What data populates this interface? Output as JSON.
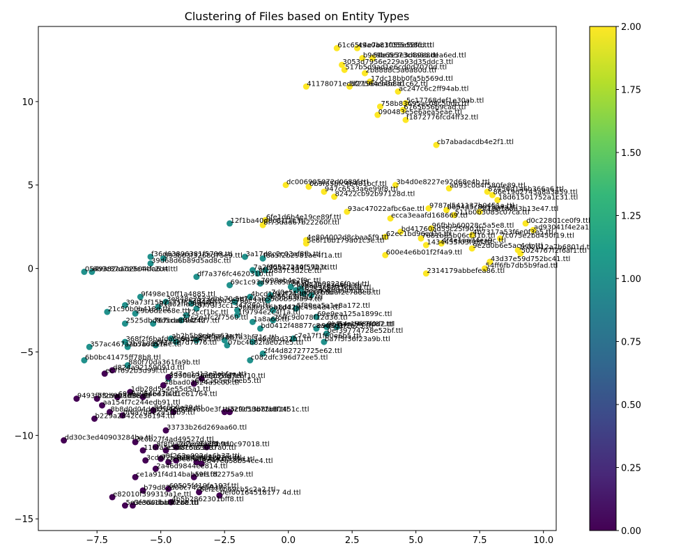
{
  "chart_data": {
    "type": "scatter",
    "title": "Clustering of Files based on Entity Types",
    "xlabel": "",
    "ylabel": "",
    "xlim": [
      -9.8,
      10.5
    ],
    "ylim": [
      -15.7,
      14.5
    ],
    "xticks": [
      -7.5,
      -5.0,
      -2.5,
      0.0,
      2.5,
      5.0,
      7.5,
      10.0
    ],
    "xtick_labels": [
      "−7.5",
      "−5.0",
      "−2.5",
      "0.0",
      "2.5",
      "5.0",
      "7.5",
      "10.0"
    ],
    "yticks": [
      -15,
      -10,
      -5,
      0,
      5,
      10
    ],
    "ytick_labels": [
      "−15",
      "−10",
      "−5",
      "0",
      "5",
      "10"
    ],
    "grid": false,
    "colormap": "viridis",
    "colors": {
      "cluster_0": "#440154",
      "cluster_1": "#21918c",
      "cluster_2": "#fde725"
    },
    "colorbar": {
      "range": [
        0,
        2
      ],
      "ticks": [
        0.0,
        0.25,
        0.5,
        0.75,
        1.0,
        1.25,
        1.5,
        1.75,
        2.0
      ],
      "tick_labels": [
        "0.00",
        "0.25",
        "0.50",
        "0.75",
        "1.00",
        "1.25",
        "1.50",
        "1.75",
        "2.00"
      ]
    },
    "points": [
      {
        "x": 1.9,
        "y": 13.2,
        "c": 2,
        "label": "61c65c4e7bc3f055d58fd.ttl"
      },
      {
        "x": 2.7,
        "y": 13.2,
        "c": 2,
        "label": "49a0a81055e58fd.ttl"
      },
      {
        "x": 2.9,
        "y": 12.6,
        "c": 2,
        "label": "b9e9b65573c4a3b.ttl"
      },
      {
        "x": 3.3,
        "y": 12.6,
        "c": 2,
        "label": "50e3e3e3d89e8dea6ed.ttl"
      },
      {
        "x": 2.1,
        "y": 12.2,
        "c": 2,
        "label": "3053d7956e229a93d35ddc3.ttl"
      },
      {
        "x": 2.2,
        "y": 11.9,
        "c": 2,
        "label": "517b5d9ad1e6cd0d7070d.ttl"
      },
      {
        "x": 3.0,
        "y": 11.7,
        "c": 2,
        "label": "2b8888c5a6a80d.ttl"
      },
      {
        "x": 0.7,
        "y": 10.9,
        "c": 2,
        "label": "41178071edd27564cb3d.ttl"
      },
      {
        "x": 2.4,
        "y": 10.9,
        "c": 2,
        "label": "5f2196a94b8a1c62.ttl"
      },
      {
        "x": 3.2,
        "y": 11.2,
        "c": 2,
        "label": "17dc18bb0fa5b569d.ttl"
      },
      {
        "x": 4.3,
        "y": 10.6,
        "c": 2,
        "label": "ac247c6c2ff94ab.ttl"
      },
      {
        "x": 4.6,
        "y": 9.9,
        "c": 2,
        "label": "5c17768def1e30ab.ttl"
      },
      {
        "x": 3.6,
        "y": 9.7,
        "c": 2,
        "label": "758b83695ac08c50db.ttl"
      },
      {
        "x": 4.5,
        "y": 9.5,
        "c": 2,
        "label": "6765b56b9cad.ttl"
      },
      {
        "x": 3.5,
        "y": 9.2,
        "c": 2,
        "label": "090483e5e6aea5eae.ttl"
      },
      {
        "x": 4.6,
        "y": 8.9,
        "c": 2,
        "label": "f1872776fcd4ff32.ttl"
      },
      {
        "x": 5.8,
        "y": 7.4,
        "c": 2,
        "label": "cb7abadacdb4e2f1.ttl"
      },
      {
        "x": -0.1,
        "y": 5.0,
        "c": 2,
        "label": "dc006905072d0688f.ttl"
      },
      {
        "x": 0.8,
        "y": 4.9,
        "c": 2,
        "label": "0b9f65bfc4b481bcf.ttl"
      },
      {
        "x": 1.4,
        "y": 4.6,
        "c": 2,
        "label": "947c6533a6e99f8.ttl"
      },
      {
        "x": 1.8,
        "y": 4.3,
        "c": 2,
        "label": "82422cb92b97128d.ttl"
      },
      {
        "x": 4.2,
        "y": 5.0,
        "c": 2,
        "label": "3b4d0e8227e92d68e4b.ttl"
      },
      {
        "x": 6.3,
        "y": 4.8,
        "c": 2,
        "label": "ab93c0d4f580fe89.ttl"
      },
      {
        "x": 7.8,
        "y": 4.6,
        "c": 2,
        "label": "87456d1a6b366a6.ttl"
      },
      {
        "x": 8.0,
        "y": 4.4,
        "c": 2,
        "label": "86e19d2743a8a3a59.ttl"
      },
      {
        "x": 8.2,
        "y": 4.1,
        "c": 2,
        "label": "18d61501752a1c31.ttl"
      },
      {
        "x": 5.5,
        "y": 3.6,
        "c": 2,
        "label": "9787d541137b0451a.ttl"
      },
      {
        "x": 6.2,
        "y": 3.5,
        "c": 2,
        "label": "b6b4d5c8e15baa.ttl"
      },
      {
        "x": 7.5,
        "y": 3.4,
        "c": 2,
        "label": "5f19d1a0a3b13e47.ttl"
      },
      {
        "x": 2.3,
        "y": 3.4,
        "c": 2,
        "label": "93ac47022afbc6ae.ttl"
      },
      {
        "x": 6.5,
        "y": 3.2,
        "c": 2,
        "label": "511b0b3085c07ca.ttl"
      },
      {
        "x": 4.0,
        "y": 3.0,
        "c": 2,
        "label": "ecca3eaafd168669.ttl"
      },
      {
        "x": 9.3,
        "y": 2.7,
        "c": 2,
        "label": "d0c22801ce0f9.ttl"
      },
      {
        "x": 5.6,
        "y": 2.4,
        "c": 2,
        "label": "96fbbb60028c5a5e8.ttl"
      },
      {
        "x": 9.6,
        "y": 2.3,
        "c": 2,
        "label": "ad93041f4e2a16.ttl"
      },
      {
        "x": 4.4,
        "y": 2.2,
        "c": 2,
        "label": "bd41760ad55c25f90.ttl"
      },
      {
        "x": 7.2,
        "y": 2.0,
        "c": 2,
        "label": "4b7317a53f6e0f3e5.ttl"
      },
      {
        "x": 3.8,
        "y": 1.9,
        "c": 2,
        "label": "62ec1bd96cd1c.ttl"
      },
      {
        "x": 5.2,
        "y": 1.8,
        "c": 2,
        "label": "7681b65b06cf31b.ttl"
      },
      {
        "x": 8.3,
        "y": 1.8,
        "c": 2,
        "label": "7c075e2bd450f19.ttl"
      },
      {
        "x": -0.9,
        "y": 2.9,
        "c": 2,
        "label": "6fe1d6b4e19ce89f.ttl"
      },
      {
        "x": -1.0,
        "y": 2.6,
        "c": 2,
        "label": "8f75dad67b22260f.ttl"
      },
      {
        "x": 0.7,
        "y": 1.7,
        "c": 2,
        "label": "4e804002d8cbaa5f9.ttl"
      },
      {
        "x": 0.7,
        "y": 1.5,
        "c": 2,
        "label": "5e6f16b179a01c3e.ttl"
      },
      {
        "x": 5.4,
        "y": 1.4,
        "c": 2,
        "label": "1434455f03f98f.ttl"
      },
      {
        "x": 6.0,
        "y": 1.5,
        "c": 2,
        "label": "4f4e1aa34ea9c.ttl"
      },
      {
        "x": 7.2,
        "y": 1.2,
        "c": 2,
        "label": "9e2d0b6e5ac4cb.ttl"
      },
      {
        "x": 9.0,
        "y": 1.1,
        "c": 2,
        "label": "1c02d12a7b6801d.ttl"
      },
      {
        "x": 9.1,
        "y": 0.9,
        "c": 2,
        "label": "5024767f2f6af1.ttl"
      },
      {
        "x": 3.8,
        "y": 0.8,
        "c": 2,
        "label": "600e4e6b01f2f4a9.ttl"
      },
      {
        "x": 7.9,
        "y": 0.4,
        "c": 2,
        "label": "43d37e59d752bc41.ttl"
      },
      {
        "x": 7.7,
        "y": 0.0,
        "c": 2,
        "label": "54ff6fb7db5b9fad.ttl"
      },
      {
        "x": 5.4,
        "y": -0.3,
        "c": 2,
        "label": "2314179abbefea86.ttl"
      },
      {
        "x": -2.3,
        "y": 2.7,
        "c": 1,
        "label": "12f1ba40d8c81f1c.ttl"
      },
      {
        "x": -5.4,
        "y": 0.7,
        "c": 1,
        "label": "f36d63896381f5798.ttl"
      },
      {
        "x": -4.9,
        "y": 0.6,
        "c": 1,
        "label": "593b63f3268d75e9.ttl"
      },
      {
        "x": -1.7,
        "y": 0.7,
        "c": 1,
        "label": "3a17d8c2c03af8fb.ttl"
      },
      {
        "x": -1.0,
        "y": 0.6,
        "c": 1,
        "label": "f8a5f2b2981ae4f1a.ttl"
      },
      {
        "x": -5.4,
        "y": 0.3,
        "c": 1,
        "label": "39d68d6b89d5ad8c.ttl"
      },
      {
        "x": -8.0,
        "y": -0.2,
        "c": 1,
        "label": "0549382aad2504dc2b4.ttl"
      },
      {
        "x": -7.7,
        "y": -0.2,
        "c": 1,
        "label": "6b9c87d7a9e44fa6.ttl"
      },
      {
        "x": -1.4,
        "y": -0.1,
        "c": 1,
        "label": "7a2f95bc2234f592.ttl"
      },
      {
        "x": -0.9,
        "y": -0.1,
        "c": 1,
        "label": "ef0527a40f57b3c.ttl"
      },
      {
        "x": -3.6,
        "y": -0.5,
        "c": 1,
        "label": "df7a376fc4620310.ttl"
      },
      {
        "x": -1.2,
        "y": -0.3,
        "c": 1,
        "label": "8fcb8a7c3d2ce.ttl"
      },
      {
        "x": -2.3,
        "y": -1.0,
        "c": 1,
        "label": "69c1c93d91c85a0a.ttl"
      },
      {
        "x": -1.1,
        "y": -0.9,
        "c": 1,
        "label": "7098ab4e2f9c.ttl"
      },
      {
        "x": 0.1,
        "y": -1.1,
        "c": 1,
        "label": "56a9c3b08236f0ad.ttl"
      },
      {
        "x": 0.5,
        "y": -1.2,
        "c": 1,
        "label": "fb8d07c364b1.ttl"
      },
      {
        "x": 0.3,
        "y": -1.3,
        "c": 1,
        "label": "bc89e3e8d37cbad.ttl"
      },
      {
        "x": 0.6,
        "y": -1.5,
        "c": 1,
        "label": "be2d08f8b0bbdb.ttl"
      },
      {
        "x": 0.9,
        "y": -1.6,
        "c": 1,
        "label": "17b5daf2c7a8ed.ttl"
      },
      {
        "x": -0.7,
        "y": -1.6,
        "c": 1,
        "label": "7d0e5cba8ea7.ttl"
      },
      {
        "x": -1.5,
        "y": -1.7,
        "c": 1,
        "label": "4bcd18a2f74.ttl"
      },
      {
        "x": -5.8,
        "y": -1.7,
        "c": 1,
        "label": "9f498e10ff1a4885.ttl"
      },
      {
        "x": -4.8,
        "y": -2.0,
        "c": 1,
        "label": "3e848e2523dbb70d.ttl"
      },
      {
        "x": -3.8,
        "y": -2.1,
        "c": 1,
        "label": "29230cba5e78ac3.ttl"
      },
      {
        "x": -2.1,
        "y": -2.0,
        "c": 1,
        "label": "1c744ab55d0b53fa94.ttl"
      },
      {
        "x": -0.8,
        "y": -1.9,
        "c": 1,
        "label": "9e55d08fbf4.ttl"
      },
      {
        "x": -6.4,
        "y": -2.2,
        "c": 1,
        "label": "39a73f15b2a71f55a9.ttl"
      },
      {
        "x": -5.1,
        "y": -2.3,
        "c": 1,
        "label": "81a02ffa3e1e.ttl"
      },
      {
        "x": -3.6,
        "y": -2.4,
        "c": 1,
        "label": "8773f3cc1347290.ttl"
      },
      {
        "x": -7.1,
        "y": -2.6,
        "c": 1,
        "label": "21c50b0b418d.ttl"
      },
      {
        "x": -6.0,
        "y": -2.7,
        "c": 1,
        "label": "29b8d2e68e.ttl"
      },
      {
        "x": -4.0,
        "y": -2.8,
        "c": 1,
        "label": "72ccf1bc.ttl"
      },
      {
        "x": -2.0,
        "y": -2.5,
        "c": 1,
        "label": "36b8eb36a1d4.ttl"
      },
      {
        "x": -0.6,
        "y": -2.5,
        "c": 1,
        "label": "b8dd2ac45a4d4.ttl"
      },
      {
        "x": 0.3,
        "y": -2.4,
        "c": 1,
        "label": "5f80ea5a1e8a172.ttl"
      },
      {
        "x": -2.0,
        "y": -2.8,
        "c": 1,
        "label": "1f9794e2c4f1a.ttl"
      },
      {
        "x": 1.1,
        "y": -2.9,
        "c": 1,
        "label": "69e9ea125a1899c.ttl"
      },
      {
        "x": -0.6,
        "y": -3.1,
        "c": 1,
        "label": "75ffc9d078f12d36.ttl"
      },
      {
        "x": -6.4,
        "y": -3.3,
        "c": 1,
        "label": "2525dbd8d5ca8f94f.ttl"
      },
      {
        "x": -5.3,
        "y": -3.3,
        "c": 1,
        "label": "767cdac4a2427.ttl"
      },
      {
        "x": -4.2,
        "y": -3.1,
        "c": 1,
        "label": "77c2e1fc2f7560.ttl"
      },
      {
        "x": -1.4,
        "y": -3.2,
        "c": 1,
        "label": "1a8a68.ttl"
      },
      {
        "x": -1.1,
        "y": -3.6,
        "c": 1,
        "label": "bd0412f48877c8a4f0.ttl"
      },
      {
        "x": 1.1,
        "y": -3.6,
        "c": 1,
        "label": "e9d8d1f2b25.ttl"
      },
      {
        "x": 1.5,
        "y": -3.5,
        "c": 1,
        "label": "9bf54ad4e7f0d2.ttl"
      },
      {
        "x": 1.9,
        "y": -3.5,
        "c": 1,
        "label": "0ae19f88d87.ttl"
      },
      {
        "x": 1.5,
        "y": -3.9,
        "c": 1,
        "label": "0ef39774728e52bf.ttl"
      },
      {
        "x": 0.2,
        "y": -4.2,
        "c": 1,
        "label": "c7e17f1f60e6b5.ttl"
      },
      {
        "x": 1.4,
        "y": -4.4,
        "c": 1,
        "label": "ba7f5f36f23a9b.ttl"
      },
      {
        "x": -6.4,
        "y": -4.4,
        "c": 1,
        "label": "368f2f6bafda6a9a.ttl"
      },
      {
        "x": -4.6,
        "y": -4.2,
        "c": 1,
        "label": "ab2b5b8eb5a63a.ttl"
      },
      {
        "x": -3.6,
        "y": -4.3,
        "c": 1,
        "label": "2f4ff5f3.ttl"
      },
      {
        "x": -2.5,
        "y": -4.3,
        "c": 1,
        "label": "6b7a3bf71c.ttl"
      },
      {
        "x": -1.4,
        "y": -4.4,
        "c": 1,
        "label": "5e0a03d32b1.ttl"
      },
      {
        "x": -7.8,
        "y": -4.7,
        "c": 1,
        "label": "357ac467aab7b7f8.ttl"
      },
      {
        "x": -6.3,
        "y": -4.7,
        "c": 1,
        "label": "7b5a6d574c.ttl"
      },
      {
        "x": -5.2,
        "y": -4.6,
        "c": 1,
        "label": "5f3a4e7d7d76.ttl"
      },
      {
        "x": -4.4,
        "y": -4.4,
        "c": 1,
        "label": "c6e1b4a5.ttl"
      },
      {
        "x": -2.4,
        "y": -4.6,
        "c": 1,
        "label": "07bc4b82fae02fe5.ttl"
      },
      {
        "x": -1.0,
        "y": -5.1,
        "c": 1,
        "label": "2f44d82727725e62.ttl"
      },
      {
        "x": -1.5,
        "y": -5.5,
        "c": 1,
        "label": "c082dfc396d72ee5.ttl"
      },
      {
        "x": -8.0,
        "y": -5.5,
        "c": 1,
        "label": "6b0bc41475ff78b8.ttl"
      },
      {
        "x": -6.3,
        "y": -5.8,
        "c": 1,
        "label": "880f70da361fa9b.ttl"
      },
      {
        "x": -4.7,
        "y": -6.6,
        "c": 1,
        "label": "3390d636c0b7caf.ttl"
      },
      {
        "x": -6.9,
        "y": -6.1,
        "c": 0,
        "label": "d824a92159091d.ttl"
      },
      {
        "x": -7.2,
        "y": -6.3,
        "c": 0,
        "label": "ec7f692b5d99f.ttl"
      },
      {
        "x": -4.7,
        "y": -6.5,
        "c": 0,
        "label": "4d7ec1d13e7ebfce.ttl"
      },
      {
        "x": -3.4,
        "y": -6.6,
        "c": 0,
        "label": "6e8b5fd7ebf10.ttl"
      },
      {
        "x": -4.9,
        "y": -7.0,
        "c": 0,
        "label": "48bad03524a5c00.ttl"
      },
      {
        "x": -3.7,
        "y": -6.9,
        "c": 0,
        "label": "6fac1b5e6feeb5.ttl"
      },
      {
        "x": -6.2,
        "y": -7.4,
        "c": 0,
        "label": "1db28d5c4e55d5a1.ttl"
      },
      {
        "x": -8.3,
        "y": -7.8,
        "c": 0,
        "label": "9493fb3c9a11d88.ttl"
      },
      {
        "x": -7.5,
        "y": -7.8,
        "c": 0,
        "label": "7f2b9b8d5e.ttl"
      },
      {
        "x": -6.7,
        "y": -7.7,
        "c": 0,
        "label": "69a9c9e4b47a.ttl"
      },
      {
        "x": -5.7,
        "y": -7.7,
        "c": 0,
        "label": "5aee3f4d1e61764.ttl"
      },
      {
        "x": -7.3,
        "y": -8.2,
        "c": 0,
        "label": "aa154f7c244edb91.ttl"
      },
      {
        "x": -7.0,
        "y": -8.6,
        "c": 0,
        "label": "8b8d0d04d4d2b4ca.ttl"
      },
      {
        "x": -5.3,
        "y": -8.5,
        "c": 0,
        "label": "84c6b0e39.ttl"
      },
      {
        "x": -4.5,
        "y": -8.6,
        "c": 0,
        "label": "5d2d4bb0e3f.ttl"
      },
      {
        "x": -2.5,
        "y": -8.6,
        "c": 0,
        "label": "e32f0f13b8fa8f.ttl"
      },
      {
        "x": -2.3,
        "y": -8.6,
        "c": 0,
        "label": "5c9c58d72b81451c.ttl"
      },
      {
        "x": -6.5,
        "y": -8.8,
        "c": 0,
        "label": "0f6a7d4e2a5f8b9.ttl"
      },
      {
        "x": -7.6,
        "y": -9.0,
        "c": 0,
        "label": "b229a2842ce36194.ttl"
      },
      {
        "x": -4.8,
        "y": -9.7,
        "c": 0,
        "label": "33733b26d269aa60.ttl"
      },
      {
        "x": -8.8,
        "y": -10.3,
        "c": 0,
        "label": "dd30c3ed40903284ba.ttl"
      },
      {
        "x": -6.0,
        "y": -10.4,
        "c": 0,
        "label": "3c0b27f4ad49527d.ttl"
      },
      {
        "x": -5.2,
        "y": -10.7,
        "c": 0,
        "label": "8f8f9a7d1c26b.ttl"
      },
      {
        "x": -4.4,
        "y": -10.7,
        "c": 0,
        "label": "2d2ee8a7f1.ttl"
      },
      {
        "x": -3.2,
        "y": -10.7,
        "c": 0,
        "label": "e3b9d0c97018.ttl"
      },
      {
        "x": -5.7,
        "y": -10.9,
        "c": 0,
        "label": "11bfa5c3d8c5a73.ttl"
      },
      {
        "x": -4.8,
        "y": -10.9,
        "c": 0,
        "label": "e50b76f83937a0.ttl"
      },
      {
        "x": -5.6,
        "y": -11.5,
        "c": 0,
        "label": "3cd6f2b4a8e1.ttl"
      },
      {
        "x": -5.0,
        "y": -11.4,
        "c": 0,
        "label": "a0f262e092da6b37.ttl"
      },
      {
        "x": -4.4,
        "y": -11.5,
        "c": 0,
        "label": "92b4a7d3e21f4.ttl"
      },
      {
        "x": -3.6,
        "y": -11.6,
        "c": 0,
        "label": "ee9c2b1559d.ttl"
      },
      {
        "x": -4.7,
        "y": -11.6,
        "c": 0,
        "label": "2c0e8fd9b7a4.ttl"
      },
      {
        "x": -3.4,
        "y": -11.7,
        "c": 0,
        "label": "3d47ea58b54ce4.ttl"
      },
      {
        "x": -5.2,
        "y": -12.0,
        "c": 0,
        "label": "2a46d9844ee814.ttl"
      },
      {
        "x": -6.0,
        "y": -12.5,
        "c": 0,
        "label": "ce1a91f4d14bab5ee.ttl"
      },
      {
        "x": -3.7,
        "y": -12.5,
        "c": 0,
        "label": "a9f1f82275a9.ttl"
      },
      {
        "x": -5.7,
        "y": -13.3,
        "c": 0,
        "label": "b79d82d00c742e59.ttl"
      },
      {
        "x": -4.7,
        "y": -13.2,
        "c": 0,
        "label": "60505f419fa193f.ttl"
      },
      {
        "x": -3.5,
        "y": -13.4,
        "c": 0,
        "label": "6ef2ccb69cb5c2a2.ttl"
      },
      {
        "x": -2.7,
        "y": -13.6,
        "c": 0,
        "label": "0ef00164518177 4d.ttl"
      },
      {
        "x": -6.9,
        "y": -13.7,
        "c": 0,
        "label": "e82010f399319a1e.ttl"
      },
      {
        "x": -4.6,
        "y": -14.0,
        "c": 0,
        "label": "4b5b2862301bff8.ttl"
      },
      {
        "x": -6.4,
        "y": -14.2,
        "c": 0,
        "label": "5e3fe6a1babbebe.ttl"
      },
      {
        "x": -6.1,
        "y": -14.2,
        "c": 0,
        "label": "6e3d0dbb3f2a8.ttl"
      }
    ]
  }
}
